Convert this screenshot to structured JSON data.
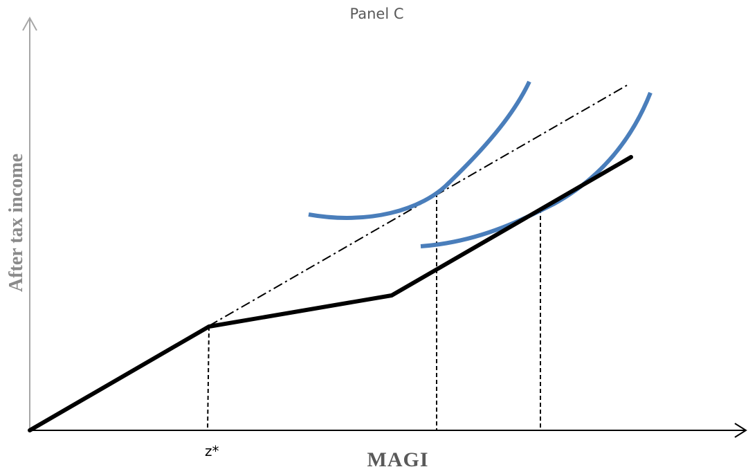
{
  "title": "Panel C",
  "axes": {
    "x_label": "MAGI",
    "y_label": "After tax income",
    "x_tick_label": "z*"
  },
  "colors": {
    "budget_line": "#000000",
    "indifference_curves": "#4a7ebb",
    "axes": "#a6a6a6",
    "x_axis": "#000000",
    "label_gray": "#595959"
  }
}
